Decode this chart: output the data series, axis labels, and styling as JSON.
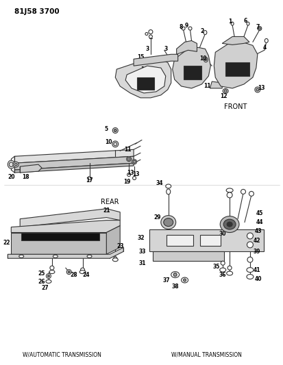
{
  "title": "81J58 3700",
  "bg_color": "#ffffff",
  "fig_width": 4.14,
  "fig_height": 5.33,
  "dpi": 100,
  "labels": {
    "top_left": "81J58 3700",
    "front": "FRONT",
    "rear": "REAR",
    "auto_trans": "W/AUTOMATIC TRANSMISSION",
    "manual_trans": "W/MANUAL TRANSMISSION"
  },
  "gray": "#333333",
  "light_gray": "#aaaaaa",
  "dark_fill": "#111111",
  "mid_gray": "#777777"
}
